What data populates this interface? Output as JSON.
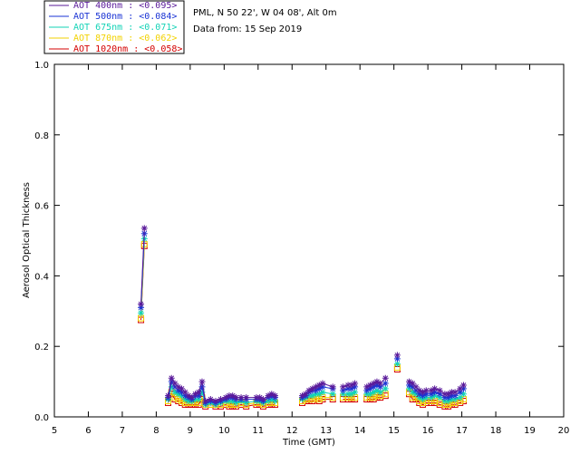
{
  "header": {
    "station": "PML, N 50 22', W 04 08', Alt 0m",
    "date": "Data from: 15 Sep 2019"
  },
  "legend": [
    {
      "label": "AOT  400nm : <0.095>",
      "color": "#5a1a9a"
    },
    {
      "label": "AOT  500nm : <0.084>",
      "color": "#1a33d4"
    },
    {
      "label": "AOT  675nm : <0.071>",
      "color": "#12d3b6"
    },
    {
      "label": "AOT  870nm : <0.062>",
      "color": "#f2d200"
    },
    {
      "label": "AOT 1020nm : <0.058>",
      "color": "#d40000"
    }
  ],
  "chart_data": {
    "type": "scatter",
    "title": "",
    "xlabel": "Time (GMT)",
    "ylabel": "Aerosol Optical Thickness",
    "xlim": [
      5,
      20
    ],
    "ylim": [
      0.0,
      1.0
    ],
    "xticks": [
      "5",
      "6",
      "7",
      "8",
      "9",
      "10",
      "11",
      "12",
      "13",
      "14",
      "15",
      "16",
      "17",
      "18",
      "19",
      "20"
    ],
    "yticks": [
      "0.0",
      "0.2",
      "0.4",
      "0.6",
      "0.8",
      "1.0"
    ],
    "grid": false,
    "x": [
      7.55,
      7.65,
      8.35,
      8.45,
      8.55,
      8.65,
      8.75,
      8.85,
      8.95,
      9.05,
      9.15,
      9.25,
      9.35,
      9.45,
      9.6,
      9.75,
      9.9,
      10.05,
      10.15,
      10.25,
      10.35,
      10.5,
      10.65,
      10.95,
      11.05,
      11.15,
      11.3,
      11.4,
      11.5,
      12.3,
      12.4,
      12.5,
      12.6,
      12.7,
      12.8,
      12.9,
      13.2,
      13.5,
      13.65,
      13.75,
      13.85,
      14.2,
      14.3,
      14.4,
      14.5,
      14.6,
      14.75,
      15.1,
      15.45,
      15.55,
      15.65,
      15.75,
      15.85,
      15.95,
      16.1,
      16.2,
      16.35,
      16.5,
      16.6,
      16.7,
      16.8,
      16.95,
      17.05
    ],
    "series": [
      {
        "name": "AOT  400nm",
        "marker": "star",
        "color": "#5a1a9a",
        "values": [
          0.32,
          0.535,
          0.06,
          0.11,
          0.095,
          0.085,
          0.08,
          0.07,
          0.06,
          0.055,
          0.065,
          0.07,
          0.1,
          0.045,
          0.05,
          0.045,
          0.05,
          0.055,
          0.06,
          0.06,
          0.055,
          0.055,
          0.055,
          0.055,
          0.055,
          0.05,
          0.06,
          0.065,
          0.06,
          0.06,
          0.065,
          0.075,
          0.08,
          0.085,
          0.09,
          0.095,
          0.085,
          0.085,
          0.09,
          0.09,
          0.095,
          0.085,
          0.09,
          0.095,
          0.1,
          0.095,
          0.11,
          0.175,
          0.1,
          0.095,
          0.085,
          0.075,
          0.07,
          0.075,
          0.075,
          0.08,
          0.075,
          0.065,
          0.065,
          0.07,
          0.07,
          0.08,
          0.09
        ]
      },
      {
        "name": "AOT  500nm",
        "marker": "star",
        "color": "#1a33d4",
        "values": [
          0.31,
          0.52,
          0.055,
          0.1,
          0.085,
          0.075,
          0.07,
          0.06,
          0.055,
          0.05,
          0.06,
          0.06,
          0.085,
          0.04,
          0.045,
          0.04,
          0.045,
          0.05,
          0.055,
          0.055,
          0.05,
          0.05,
          0.05,
          0.05,
          0.05,
          0.045,
          0.055,
          0.06,
          0.055,
          0.055,
          0.06,
          0.07,
          0.075,
          0.075,
          0.08,
          0.085,
          0.08,
          0.075,
          0.08,
          0.08,
          0.085,
          0.075,
          0.08,
          0.085,
          0.09,
          0.085,
          0.095,
          0.165,
          0.09,
          0.085,
          0.075,
          0.065,
          0.06,
          0.065,
          0.065,
          0.07,
          0.065,
          0.055,
          0.055,
          0.06,
          0.06,
          0.07,
          0.08
        ]
      },
      {
        "name": "AOT  675nm",
        "marker": "star",
        "color": "#12d3b6",
        "values": [
          0.295,
          0.505,
          0.05,
          0.085,
          0.07,
          0.065,
          0.06,
          0.05,
          0.045,
          0.045,
          0.05,
          0.05,
          0.07,
          0.035,
          0.04,
          0.035,
          0.04,
          0.045,
          0.045,
          0.045,
          0.04,
          0.045,
          0.04,
          0.045,
          0.045,
          0.04,
          0.045,
          0.05,
          0.045,
          0.05,
          0.055,
          0.06,
          0.06,
          0.065,
          0.065,
          0.07,
          0.065,
          0.065,
          0.065,
          0.065,
          0.07,
          0.065,
          0.065,
          0.07,
          0.075,
          0.07,
          0.08,
          0.15,
          0.08,
          0.07,
          0.065,
          0.055,
          0.05,
          0.055,
          0.055,
          0.06,
          0.055,
          0.045,
          0.045,
          0.05,
          0.05,
          0.055,
          0.065
        ]
      },
      {
        "name": "AOT  870nm",
        "marker": "square",
        "color": "#f2d200",
        "values": [
          0.28,
          0.49,
          0.045,
          0.07,
          0.055,
          0.05,
          0.045,
          0.04,
          0.04,
          0.04,
          0.04,
          0.04,
          0.055,
          0.035,
          0.035,
          0.035,
          0.035,
          0.04,
          0.035,
          0.035,
          0.035,
          0.04,
          0.035,
          0.04,
          0.04,
          0.035,
          0.04,
          0.04,
          0.04,
          0.045,
          0.05,
          0.05,
          0.05,
          0.055,
          0.05,
          0.055,
          0.055,
          0.055,
          0.055,
          0.055,
          0.055,
          0.055,
          0.055,
          0.055,
          0.06,
          0.06,
          0.065,
          0.14,
          0.07,
          0.055,
          0.055,
          0.045,
          0.04,
          0.045,
          0.045,
          0.045,
          0.04,
          0.035,
          0.035,
          0.04,
          0.04,
          0.045,
          0.05
        ]
      },
      {
        "name": "AOT 1020nm",
        "marker": "square",
        "color": "#d40000",
        "values": [
          0.275,
          0.485,
          0.04,
          0.065,
          0.05,
          0.045,
          0.04,
          0.035,
          0.035,
          0.035,
          0.035,
          0.035,
          0.05,
          0.03,
          0.035,
          0.03,
          0.03,
          0.035,
          0.03,
          0.03,
          0.03,
          0.035,
          0.03,
          0.035,
          0.035,
          0.03,
          0.035,
          0.035,
          0.035,
          0.04,
          0.045,
          0.045,
          0.045,
          0.05,
          0.045,
          0.05,
          0.05,
          0.05,
          0.05,
          0.05,
          0.05,
          0.05,
          0.05,
          0.05,
          0.055,
          0.055,
          0.06,
          0.135,
          0.065,
          0.05,
          0.05,
          0.04,
          0.035,
          0.04,
          0.04,
          0.04,
          0.035,
          0.03,
          0.03,
          0.035,
          0.035,
          0.04,
          0.045
        ]
      }
    ]
  }
}
